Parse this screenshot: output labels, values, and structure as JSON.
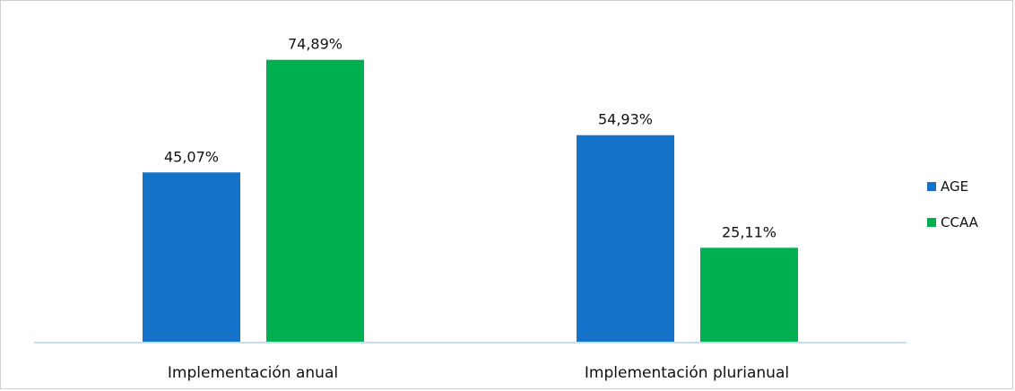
{
  "chart_data": {
    "type": "bar",
    "categories": [
      "Implementación anual",
      "Implementación plurianual"
    ],
    "series": [
      {
        "name": "AGE",
        "color": "#1472C9",
        "values": [
          45.07,
          54.93
        ],
        "labels": [
          "45,07%",
          "54,93%"
        ]
      },
      {
        "name": "CCAA",
        "color": "#00B050",
        "values": [
          74.89,
          25.11
        ],
        "labels": [
          "74,89%",
          "25,11%"
        ]
      }
    ],
    "ylim": [
      0,
      80
    ],
    "grid": false,
    "legend_position": "right",
    "title": "",
    "xlabel": "",
    "ylabel": ""
  }
}
